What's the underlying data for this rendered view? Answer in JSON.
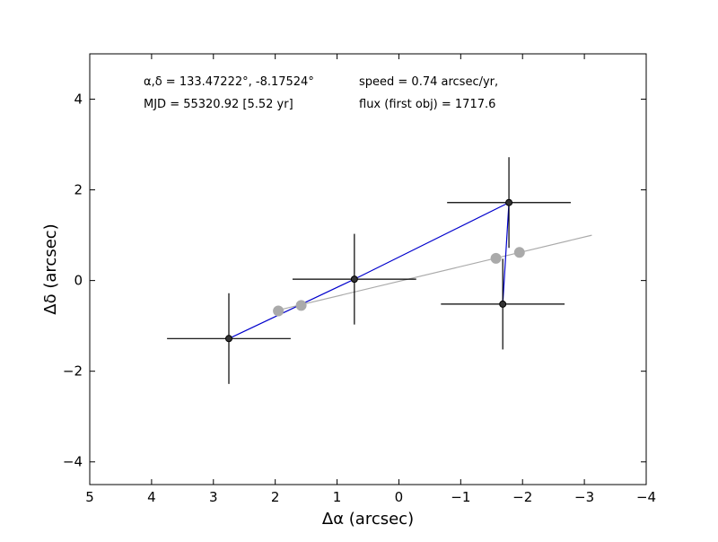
{
  "chart_data": {
    "type": "scatter",
    "xlabel": "Δα (arcsec)",
    "ylabel": "Δδ (arcsec)",
    "xlim": [
      5,
      -4
    ],
    "ylim": [
      -4.5,
      5
    ],
    "x_ticks": [
      5,
      4,
      3,
      2,
      1,
      0,
      -1,
      -2,
      -3,
      -4
    ],
    "y_ticks": [
      -4,
      -2,
      0,
      2,
      4
    ],
    "annotations": {
      "coords": "α,δ = 133.47222°, -8.17524°",
      "mjd": "MJD = 55320.92 [5.52 yr]",
      "speed": "speed = 0.74 arcsec/yr,",
      "flux": "flux (first obj) = 1717.6"
    },
    "observed": {
      "color": "#000000",
      "line_color": "#0000cc",
      "points": [
        {
          "x": 2.75,
          "y": -1.28,
          "xerr": 1.0,
          "yerr": 1.0
        },
        {
          "x": 0.72,
          "y": 0.03,
          "xerr": 1.0,
          "yerr": 1.0
        },
        {
          "x": -1.78,
          "y": 1.72,
          "xerr": 1.0,
          "yerr": 1.0
        },
        {
          "x": -1.68,
          "y": -0.52,
          "xerr": 1.0,
          "yerr": 1.0
        }
      ]
    },
    "model": {
      "color": "#aaaaaa",
      "line": [
        {
          "x": 1.97,
          "y": -0.66
        },
        {
          "x": -3.12,
          "y": 1.0
        }
      ],
      "points": [
        {
          "x": 1.95,
          "y": -0.67
        },
        {
          "x": 1.58,
          "y": -0.55
        },
        {
          "x": -1.57,
          "y": 0.49
        },
        {
          "x": -1.95,
          "y": 0.62
        }
      ]
    }
  }
}
